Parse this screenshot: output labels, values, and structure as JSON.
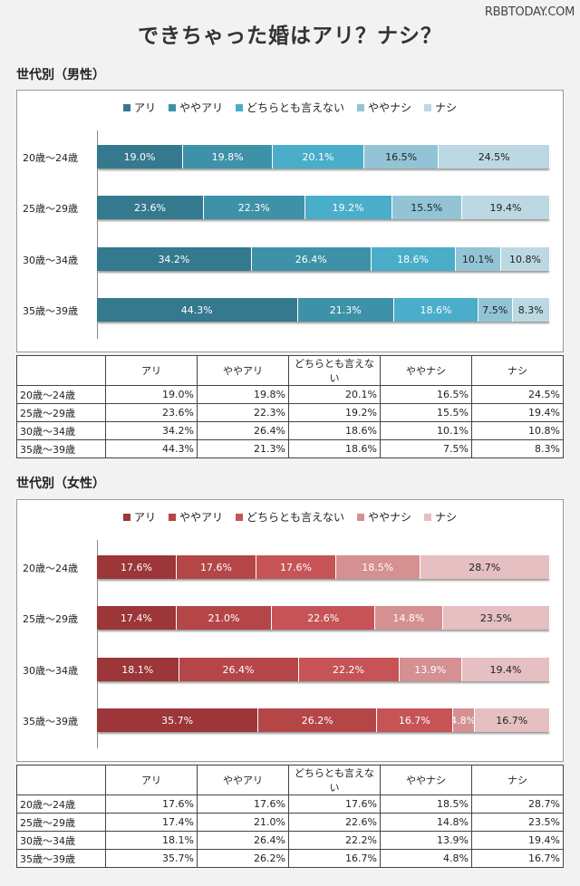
{
  "watermark": "RBBTODAY.COM",
  "title": "できちゃった婚はアリ？ナシ？",
  "categories": [
    "アリ",
    "ややアリ",
    "どちらとも言えない",
    "ややナシ",
    "ナシ"
  ],
  "chart_data": [
    {
      "type": "bar",
      "title": "世代別（男性）",
      "stacked": true,
      "orientation": "horizontal",
      "unit": "%",
      "rows": [
        "20歳～24歳",
        "25歳～29歳",
        "30歳～34歳",
        "35歳～39歳"
      ],
      "series": [
        {
          "name": "アリ",
          "color": "#35798e",
          "values": [
            19.0,
            23.6,
            34.2,
            44.3
          ]
        },
        {
          "name": "ややアリ",
          "color": "#3e92a8",
          "values": [
            19.8,
            22.3,
            26.4,
            21.3
          ]
        },
        {
          "name": "どちらとも言えない",
          "color": "#4aadc9",
          "values": [
            20.1,
            19.2,
            18.6,
            18.6
          ]
        },
        {
          "name": "ややナシ",
          "color": "#93c4d6",
          "values": [
            16.5,
            15.5,
            10.1,
            7.5
          ]
        },
        {
          "name": "ナシ",
          "color": "#bcd9e3",
          "values": [
            24.5,
            19.4,
            10.8,
            8.3
          ]
        }
      ]
    },
    {
      "type": "bar",
      "title": "世代別（女性）",
      "stacked": true,
      "orientation": "horizontal",
      "unit": "%",
      "rows": [
        "20歳～24歳",
        "25歳～29歳",
        "30歳～34歳",
        "35歳～39歳"
      ],
      "series": [
        {
          "name": "アリ",
          "color": "#9c3638",
          "values": [
            17.6,
            17.4,
            18.1,
            35.7
          ]
        },
        {
          "name": "ややアリ",
          "color": "#b54648",
          "values": [
            17.6,
            21.0,
            26.4,
            26.2
          ]
        },
        {
          "name": "どちらとも言えない",
          "color": "#c65456",
          "values": [
            17.6,
            22.6,
            22.2,
            16.7
          ]
        },
        {
          "name": "ややナシ",
          "color": "#d59092",
          "values": [
            18.5,
            14.8,
            13.9,
            4.8
          ]
        },
        {
          "name": "ナシ",
          "color": "#e5bfc1",
          "values": [
            28.7,
            23.5,
            19.4,
            16.7
          ]
        }
      ]
    }
  ]
}
